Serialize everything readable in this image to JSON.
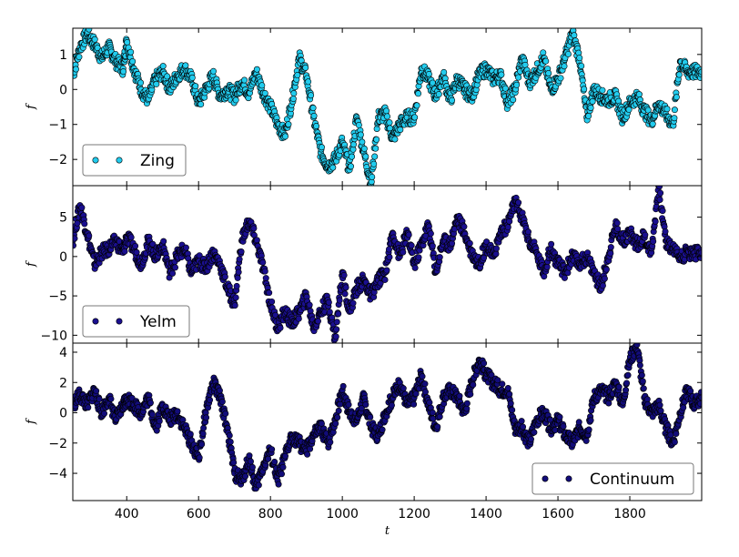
{
  "chart_data": [
    {
      "type": "scatter",
      "xlabel": "",
      "ylabel": "f",
      "xlim": [
        250,
        2000
      ],
      "ylim": [
        -2.75,
        1.75
      ],
      "yticks": [
        -2,
        -1,
        0,
        1
      ],
      "legend": {
        "position": "lower-left"
      },
      "series": [
        {
          "name": "Zing",
          "color": "#22ccee",
          "x": [
            250,
            270,
            290,
            310,
            330,
            350,
            370,
            390,
            400,
            420,
            440,
            460,
            480,
            500,
            520,
            540,
            560,
            580,
            600,
            620,
            640,
            660,
            680,
            700,
            720,
            740,
            760,
            780,
            800,
            820,
            840,
            860,
            880,
            900,
            920,
            940,
            960,
            980,
            1000,
            1020,
            1040,
            1060,
            1080,
            1100,
            1120,
            1140,
            1160,
            1180,
            1200,
            1220,
            1240,
            1260,
            1280,
            1300,
            1320,
            1340,
            1360,
            1380,
            1400,
            1420,
            1440,
            1460,
            1480,
            1500,
            1520,
            1540,
            1560,
            1580,
            1600,
            1620,
            1640,
            1660,
            1680,
            1700,
            1720,
            1740,
            1760,
            1780,
            1800,
            1820,
            1840,
            1860,
            1880,
            1900,
            1920,
            1940,
            1960,
            1980,
            2000
          ],
          "values": [
            0.4,
            1.2,
            1.6,
            1.3,
            0.9,
            1.2,
            0.8,
            0.6,
            1.4,
            0.6,
            0.0,
            -0.3,
            0.3,
            0.5,
            0.0,
            0.4,
            0.6,
            0.3,
            -0.4,
            0.0,
            0.4,
            -0.2,
            0.0,
            -0.2,
            0.2,
            -0.1,
            0.5,
            -0.1,
            -0.5,
            -1.0,
            -1.3,
            -0.3,
            0.9,
            0.4,
            -0.8,
            -1.8,
            -2.2,
            -2.0,
            -1.5,
            -2.3,
            -0.8,
            -1.8,
            -2.7,
            -0.8,
            -0.7,
            -1.4,
            -1.0,
            -0.8,
            -0.8,
            0.6,
            0.3,
            -0.2,
            0.4,
            -0.3,
            0.3,
            0.0,
            -0.2,
            0.4,
            0.6,
            0.3,
            0.4,
            -0.4,
            0.0,
            0.9,
            0.2,
            0.5,
            0.9,
            0.0,
            0.3,
            0.9,
            1.6,
            0.9,
            -0.8,
            0.0,
            -0.2,
            -0.3,
            -0.2,
            -0.8,
            -0.4,
            -0.2,
            -0.6,
            -0.9,
            -0.4,
            -0.7,
            -1.0,
            0.8,
            0.5,
            0.5,
            0.5
          ]
        }
      ]
    },
    {
      "type": "scatter",
      "xlabel": "",
      "ylabel": "f",
      "xlim": [
        250,
        2000
      ],
      "ylim": [
        -11,
        9
      ],
      "yticks": [
        -10,
        -5,
        0,
        5
      ],
      "legend": {
        "position": "lower-left"
      },
      "series": [
        {
          "name": "Yelm",
          "color": "#1a0f8f",
          "x": [
            250,
            270,
            290,
            310,
            330,
            350,
            370,
            390,
            400,
            420,
            440,
            460,
            480,
            500,
            520,
            540,
            560,
            580,
            600,
            620,
            640,
            660,
            680,
            700,
            720,
            740,
            760,
            780,
            800,
            820,
            840,
            860,
            880,
            900,
            920,
            940,
            960,
            980,
            1000,
            1020,
            1040,
            1060,
            1080,
            1100,
            1120,
            1140,
            1160,
            1180,
            1200,
            1220,
            1240,
            1260,
            1280,
            1300,
            1320,
            1340,
            1360,
            1380,
            1400,
            1420,
            1440,
            1460,
            1480,
            1500,
            1520,
            1540,
            1560,
            1580,
            1600,
            1620,
            1640,
            1660,
            1680,
            1700,
            1720,
            1740,
            1760,
            1780,
            1800,
            1820,
            1840,
            1860,
            1880,
            1900,
            1920,
            1940,
            1960,
            1980,
            2000
          ],
          "values": [
            2.0,
            6.5,
            3.0,
            -1.0,
            0.5,
            1.0,
            2.0,
            0.5,
            2.5,
            1.0,
            -1.0,
            2.0,
            0.0,
            1.5,
            -2.0,
            0.0,
            1.0,
            -2.0,
            -0.5,
            -1.5,
            0.5,
            -1.0,
            -4.0,
            -6.0,
            2.0,
            4.5,
            2.0,
            -1.5,
            -6.0,
            -9.0,
            -7.0,
            -8.5,
            -7.0,
            -5.0,
            -9.0,
            -7.0,
            -5.5,
            -10.5,
            -2.0,
            -7.0,
            -4.0,
            -3.0,
            -5.0,
            -3.0,
            -2.0,
            3.0,
            0.0,
            3.0,
            -1.0,
            1.5,
            4.0,
            -2.0,
            2.0,
            1.5,
            5.0,
            3.0,
            0.5,
            -1.0,
            1.5,
            0.0,
            3.0,
            4.0,
            7.0,
            5.0,
            2.0,
            0.5,
            -2.0,
            1.0,
            -1.0,
            -2.0,
            0.0,
            -1.0,
            0.0,
            -2.0,
            -4.0,
            0.0,
            4.0,
            2.0,
            3.0,
            1.5,
            2.5,
            0.5,
            9.0,
            2.0,
            1.0,
            0.0,
            0.5,
            0.5,
            0.5
          ]
        }
      ]
    },
    {
      "type": "scatter",
      "xlabel": "t",
      "ylabel": "f",
      "xlim": [
        250,
        2000
      ],
      "ylim": [
        -5.8,
        4.6
      ],
      "xticks": [
        400,
        600,
        800,
        1000,
        1200,
        1400,
        1600,
        1800
      ],
      "yticks": [
        -4,
        -2,
        0,
        2,
        4
      ],
      "legend": {
        "position": "lower-right"
      },
      "series": [
        {
          "name": "Continuum",
          "color": "#120c7a",
          "x": [
            250,
            270,
            290,
            310,
            330,
            350,
            370,
            390,
            400,
            420,
            440,
            460,
            480,
            500,
            520,
            540,
            560,
            580,
            600,
            620,
            640,
            660,
            680,
            700,
            720,
            740,
            760,
            780,
            800,
            820,
            840,
            860,
            880,
            900,
            920,
            940,
            960,
            980,
            1000,
            1020,
            1040,
            1060,
            1080,
            1100,
            1120,
            1140,
            1160,
            1180,
            1200,
            1220,
            1240,
            1260,
            1280,
            1300,
            1320,
            1340,
            1360,
            1380,
            1400,
            1420,
            1440,
            1460,
            1480,
            1500,
            1520,
            1540,
            1560,
            1580,
            1600,
            1620,
            1640,
            1660,
            1680,
            1700,
            1720,
            1740,
            1760,
            1780,
            1800,
            1820,
            1840,
            1860,
            1880,
            1900,
            1920,
            1940,
            1960,
            1980,
            2000
          ],
          "values": [
            0.5,
            1.2,
            0.5,
            1.5,
            0.0,
            1.0,
            -0.5,
            0.5,
            1.0,
            0.5,
            0.0,
            1.0,
            -1.0,
            0.5,
            -0.5,
            0.0,
            -1.0,
            -2.0,
            -3.0,
            0.0,
            2.0,
            1.0,
            -1.0,
            -4.0,
            -4.5,
            -3.0,
            -5.0,
            -3.5,
            -2.5,
            -4.5,
            -3.0,
            -1.5,
            -2.0,
            -2.5,
            -1.5,
            -1.0,
            -2.0,
            -0.5,
            1.5,
            0.0,
            -0.5,
            1.0,
            -1.0,
            -1.5,
            0.0,
            1.0,
            2.0,
            0.5,
            1.0,
            2.5,
            0.5,
            -1.0,
            1.0,
            1.5,
            1.0,
            0.0,
            2.0,
            3.5,
            2.5,
            2.0,
            1.5,
            1.5,
            -1.0,
            -1.0,
            -2.0,
            -0.5,
            0.0,
            -1.0,
            -0.5,
            -1.5,
            -2.0,
            -1.0,
            -1.5,
            1.0,
            1.5,
            1.0,
            2.0,
            0.5,
            3.5,
            4.5,
            1.0,
            0.0,
            0.5,
            -1.0,
            -2.0,
            0.0,
            1.5,
            0.5,
            1.0
          ]
        }
      ]
    }
  ]
}
